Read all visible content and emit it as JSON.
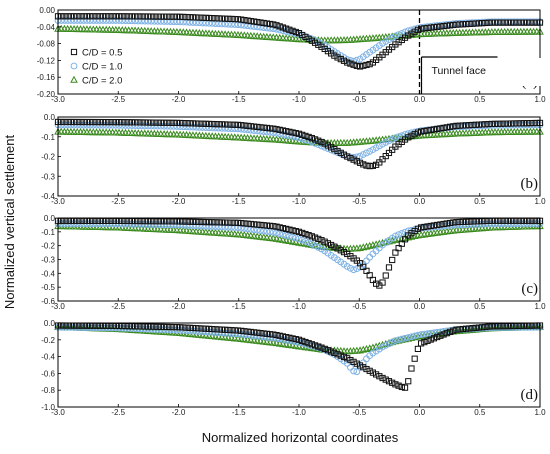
{
  "figure": {
    "xlabel": "Normalized horizontal coordinates",
    "ylabel": "Normalized vertical settlement"
  },
  "legend": {
    "position": "top-left of panel (a)",
    "entries": [
      {
        "label": "C/D = 0.5",
        "marker": "square",
        "color": "#111111"
      },
      {
        "label": "C/D = 1.0",
        "marker": "circle",
        "color": "#7fb2e5"
      },
      {
        "label": "C/D = 2.0",
        "marker": "triangle",
        "color": "#3a8a1e"
      }
    ]
  },
  "annotation": {
    "text": "Tunnel face"
  },
  "chart_data": [
    {
      "type": "scatter",
      "panel_label": "(a)",
      "xlim": [
        -3.0,
        1.0
      ],
      "ylim": [
        -0.2,
        0.0
      ],
      "xticks": [
        "-3.0",
        "-2.5",
        "-2.0",
        "-1.5",
        "-1.0",
        "-0.5",
        "0.0",
        "0.5",
        "1.0"
      ],
      "yticks": [
        "0.00",
        "-0.04",
        "-0.08",
        "-0.12",
        "-0.16",
        "-0.20"
      ],
      "tunnel_face_x": 0.0,
      "series": [
        {
          "name": "C/D = 0.5",
          "x": [
            -3.0,
            -2.5,
            -2.0,
            -1.5,
            -1.2,
            -1.0,
            -0.9,
            -0.8,
            -0.7,
            -0.6,
            -0.5,
            -0.4,
            -0.3,
            -0.2,
            -0.1,
            0.0,
            0.3,
            0.6,
            1.0
          ],
          "y": [
            -0.015,
            -0.015,
            -0.016,
            -0.022,
            -0.035,
            -0.055,
            -0.072,
            -0.09,
            -0.11,
            -0.125,
            -0.135,
            -0.128,
            -0.105,
            -0.082,
            -0.062,
            -0.045,
            -0.035,
            -0.03,
            -0.03
          ]
        },
        {
          "name": "C/D = 1.0",
          "x": [
            -3.0,
            -2.5,
            -2.0,
            -1.5,
            -1.2,
            -1.0,
            -0.9,
            -0.8,
            -0.7,
            -0.6,
            -0.55,
            -0.5,
            -0.4,
            -0.3,
            -0.2,
            -0.1,
            0.0,
            0.3,
            0.6,
            1.0
          ],
          "y": [
            -0.025,
            -0.025,
            -0.028,
            -0.035,
            -0.045,
            -0.058,
            -0.068,
            -0.082,
            -0.1,
            -0.118,
            -0.122,
            -0.118,
            -0.098,
            -0.078,
            -0.062,
            -0.05,
            -0.042,
            -0.032,
            -0.028,
            -0.028
          ]
        },
        {
          "name": "C/D = 2.0",
          "x": [
            -3.0,
            -2.5,
            -2.0,
            -1.5,
            -1.2,
            -1.0,
            -0.8,
            -0.6,
            -0.4,
            -0.2,
            0.0,
            0.3,
            0.6,
            1.0
          ],
          "y": [
            -0.045,
            -0.048,
            -0.053,
            -0.06,
            -0.066,
            -0.07,
            -0.073,
            -0.072,
            -0.068,
            -0.063,
            -0.058,
            -0.055,
            -0.053,
            -0.052
          ]
        }
      ]
    },
    {
      "type": "scatter",
      "panel_label": "(b)",
      "xlim": [
        -3.0,
        1.0
      ],
      "ylim": [
        -0.4,
        0.0
      ],
      "xticks": [
        "-3.0",
        "-2.5",
        "-2.0",
        "-1.5",
        "-1.0",
        "-0.5",
        "0.0",
        "0.5",
        "1.0"
      ],
      "yticks": [
        "0.0",
        "-0.1",
        "-0.2",
        "-0.3",
        "-0.4"
      ],
      "series": [
        {
          "name": "C/D = 0.5",
          "x": [
            -3.0,
            -2.5,
            -2.0,
            -1.5,
            -1.2,
            -1.0,
            -0.9,
            -0.8,
            -0.7,
            -0.6,
            -0.5,
            -0.45,
            -0.4,
            -0.35,
            -0.3,
            -0.2,
            -0.1,
            0.0,
            0.3,
            0.6,
            1.0
          ],
          "y": [
            -0.025,
            -0.026,
            -0.03,
            -0.04,
            -0.06,
            -0.085,
            -0.105,
            -0.13,
            -0.165,
            -0.2,
            -0.23,
            -0.245,
            -0.25,
            -0.24,
            -0.21,
            -0.15,
            -0.105,
            -0.075,
            -0.045,
            -0.035,
            -0.03
          ]
        },
        {
          "name": "C/D = 1.0",
          "x": [
            -3.0,
            -2.5,
            -2.0,
            -1.5,
            -1.2,
            -1.0,
            -0.9,
            -0.8,
            -0.7,
            -0.6,
            -0.55,
            -0.5,
            -0.4,
            -0.3,
            -0.2,
            -0.1,
            0.0,
            0.3,
            0.6,
            1.0
          ],
          "y": [
            -0.04,
            -0.042,
            -0.048,
            -0.06,
            -0.08,
            -0.105,
            -0.125,
            -0.15,
            -0.175,
            -0.2,
            -0.205,
            -0.2,
            -0.17,
            -0.135,
            -0.105,
            -0.085,
            -0.07,
            -0.05,
            -0.042,
            -0.04
          ]
        },
        {
          "name": "C/D = 2.0",
          "x": [
            -3.0,
            -2.5,
            -2.0,
            -1.5,
            -1.2,
            -1.0,
            -0.8,
            -0.6,
            -0.4,
            -0.2,
            0.0,
            0.3,
            0.6,
            1.0
          ],
          "y": [
            -0.075,
            -0.08,
            -0.09,
            -0.105,
            -0.115,
            -0.125,
            -0.133,
            -0.132,
            -0.122,
            -0.108,
            -0.095,
            -0.085,
            -0.078,
            -0.075
          ]
        }
      ]
    },
    {
      "type": "scatter",
      "panel_label": "(c)",
      "xlim": [
        -3.0,
        1.0
      ],
      "ylim": [
        -0.6,
        0.0
      ],
      "xticks": [
        "-3.0",
        "-2.5",
        "-2.0",
        "-1.5",
        "-1.0",
        "-0.5",
        "0.0",
        "0.5",
        "1.0"
      ],
      "yticks": [
        "0.0",
        "-0.1",
        "-0.2",
        "-0.3",
        "-0.4",
        "-0.5",
        "-0.6"
      ],
      "series": [
        {
          "name": "C/D = 0.5",
          "x": [
            -3.0,
            -2.5,
            -2.0,
            -1.5,
            -1.2,
            -1.0,
            -0.9,
            -0.8,
            -0.7,
            -0.6,
            -0.5,
            -0.45,
            -0.4,
            -0.37,
            -0.33,
            -0.3,
            -0.25,
            -0.2,
            -0.1,
            0.0,
            0.3,
            0.6,
            1.0
          ],
          "y": [
            -0.02,
            -0.021,
            -0.025,
            -0.035,
            -0.06,
            -0.1,
            -0.13,
            -0.165,
            -0.21,
            -0.26,
            -0.32,
            -0.37,
            -0.43,
            -0.47,
            -0.49,
            -0.46,
            -0.35,
            -0.25,
            -0.13,
            -0.07,
            -0.03,
            -0.02,
            -0.02
          ]
        },
        {
          "name": "C/D = 1.0",
          "x": [
            -3.0,
            -2.5,
            -2.0,
            -1.5,
            -1.2,
            -1.0,
            -0.9,
            -0.8,
            -0.7,
            -0.6,
            -0.55,
            -0.5,
            -0.45,
            -0.4,
            -0.3,
            -0.2,
            -0.1,
            0.0,
            0.3,
            0.6,
            1.0
          ],
          "y": [
            -0.04,
            -0.042,
            -0.05,
            -0.07,
            -0.105,
            -0.15,
            -0.185,
            -0.23,
            -0.29,
            -0.35,
            -0.375,
            -0.36,
            -0.32,
            -0.27,
            -0.19,
            -0.13,
            -0.095,
            -0.075,
            -0.05,
            -0.042,
            -0.04
          ]
        },
        {
          "name": "C/D = 2.0",
          "x": [
            -3.0,
            -2.5,
            -2.0,
            -1.5,
            -1.2,
            -1.0,
            -0.8,
            -0.6,
            -0.5,
            -0.4,
            -0.2,
            0.0,
            0.3,
            0.6,
            1.0
          ],
          "y": [
            -0.06,
            -0.07,
            -0.09,
            -0.12,
            -0.15,
            -0.18,
            -0.21,
            -0.225,
            -0.22,
            -0.2,
            -0.16,
            -0.125,
            -0.09,
            -0.07,
            -0.06
          ]
        }
      ]
    },
    {
      "type": "scatter",
      "panel_label": "(d)",
      "xlim": [
        -3.0,
        1.0
      ],
      "ylim": [
        -1.0,
        0.0
      ],
      "xticks": [
        "-3.0",
        "-2.5",
        "-2.0",
        "-1.5",
        "-1.0",
        "-0.5",
        "0.0",
        "0.5",
        "1.0"
      ],
      "yticks": [
        "0.0",
        "-0.2",
        "-0.4",
        "-0.6",
        "-0.8",
        "-1.0"
      ],
      "series": [
        {
          "name": "C/D = 0.5",
          "x": [
            -3.0,
            -2.5,
            -2.0,
            -1.5,
            -1.2,
            -1.0,
            -0.8,
            -0.6,
            -0.5,
            -0.4,
            -0.3,
            -0.2,
            -0.15,
            -0.12,
            -0.1,
            -0.08,
            0.0,
            0.3,
            0.6,
            1.0
          ],
          "y": [
            -0.03,
            -0.035,
            -0.05,
            -0.09,
            -0.14,
            -0.2,
            -0.3,
            -0.42,
            -0.5,
            -0.58,
            -0.66,
            -0.73,
            -0.76,
            -0.77,
            -0.74,
            -0.6,
            -0.25,
            -0.08,
            -0.04,
            -0.03
          ]
        },
        {
          "name": "C/D = 1.0",
          "x": [
            -3.0,
            -2.5,
            -2.0,
            -1.5,
            -1.2,
            -1.0,
            -0.8,
            -0.7,
            -0.6,
            -0.55,
            -0.52,
            -0.5,
            -0.45,
            -0.4,
            -0.3,
            -0.2,
            0.0,
            0.3,
            0.6,
            1.0
          ],
          "y": [
            -0.05,
            -0.06,
            -0.085,
            -0.13,
            -0.18,
            -0.23,
            -0.31,
            -0.38,
            -0.48,
            -0.57,
            -0.58,
            -0.54,
            -0.44,
            -0.37,
            -0.28,
            -0.21,
            -0.14,
            -0.08,
            -0.055,
            -0.05
          ]
        },
        {
          "name": "C/D = 2.0",
          "x": [
            -3.0,
            -2.5,
            -2.0,
            -1.5,
            -1.2,
            -1.0,
            -0.8,
            -0.6,
            -0.5,
            -0.4,
            -0.2,
            0.0,
            0.3,
            0.6,
            1.0
          ],
          "y": [
            -0.05,
            -0.075,
            -0.12,
            -0.19,
            -0.24,
            -0.28,
            -0.32,
            -0.34,
            -0.33,
            -0.3,
            -0.22,
            -0.16,
            -0.1,
            -0.065,
            -0.05
          ]
        }
      ]
    }
  ]
}
